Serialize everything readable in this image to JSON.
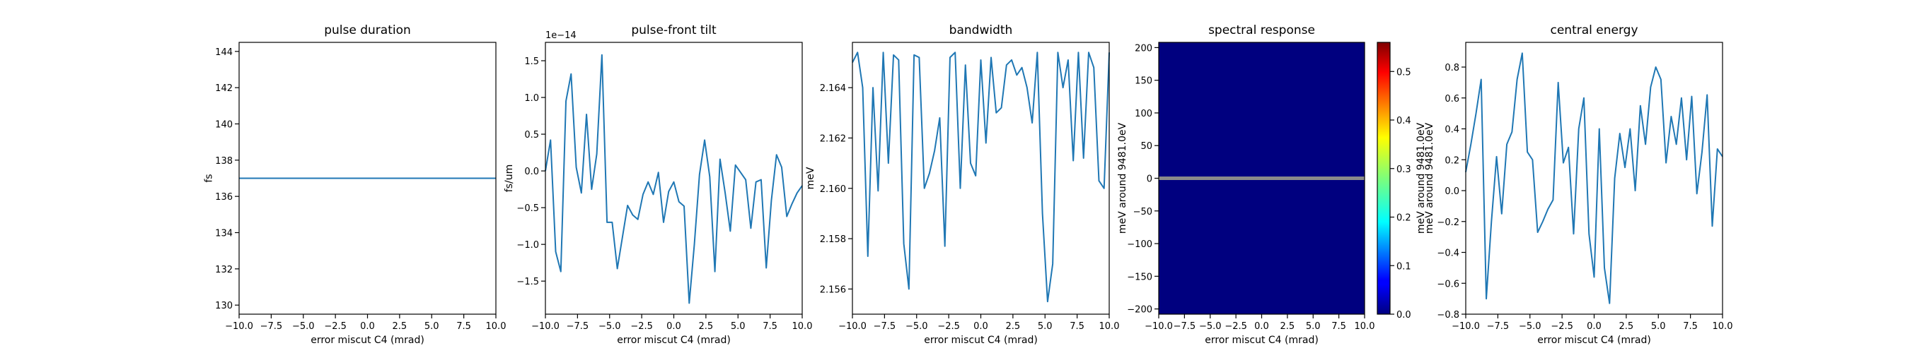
{
  "figure": {
    "background": "#ffffff"
  },
  "chart_data": [
    {
      "type": "line",
      "title": "pulse duration",
      "xlabel": "error miscut C4 (mrad)",
      "ylabel": "fs",
      "xlim": [
        -10,
        10
      ],
      "ylim": [
        129.5,
        144.5
      ],
      "xticks": [
        -10,
        -7.5,
        -5,
        -2.5,
        0,
        2.5,
        5,
        7.5,
        10
      ],
      "xtick_labels": [
        "−10.0",
        "−7.5",
        "−5.0",
        "−2.5",
        "0.0",
        "2.5",
        "5.0",
        "7.5",
        "10.0"
      ],
      "yticks": [
        130,
        132,
        134,
        136,
        138,
        140,
        142,
        144
      ],
      "ytick_labels": [
        "130",
        "132",
        "134",
        "136",
        "138",
        "140",
        "142",
        "144"
      ],
      "color": "#1f77b4",
      "series": [
        {
          "x": [
            -10,
            10
          ],
          "y": [
            137.0,
            137.0
          ]
        }
      ]
    },
    {
      "type": "line",
      "title": "pulse-front tilt",
      "xlabel": "error miscut C4 (mrad)",
      "ylabel": "fs/um",
      "offset_text": "1e−14",
      "xlim": [
        -10,
        10
      ],
      "ylim": [
        -1.95,
        1.75
      ],
      "xticks": [
        -10,
        -7.5,
        -5,
        -2.5,
        0,
        2.5,
        5,
        7.5,
        10
      ],
      "xtick_labels": [
        "−10.0",
        "−7.5",
        "−5.0",
        "−2.5",
        "0.0",
        "2.5",
        "5.0",
        "7.5",
        "10.0"
      ],
      "yticks": [
        -1.5,
        -1.0,
        -0.5,
        0.0,
        0.5,
        1.0,
        1.5
      ],
      "ytick_labels": [
        "−1.5",
        "−1.0",
        "−0.5",
        "0.0",
        "0.5",
        "1.0",
        "1.5"
      ],
      "color": "#1f77b4",
      "series": [
        {
          "x": [
            -10,
            -9.6,
            -9.2,
            -8.8,
            -8.4,
            -8.0,
            -7.6,
            -7.2,
            -6.8,
            -6.4,
            -6.0,
            -5.6,
            -5.2,
            -4.8,
            -4.4,
            -4.0,
            -3.6,
            -3.2,
            -2.8,
            -2.4,
            -2.0,
            -1.6,
            -1.2,
            -0.8,
            -0.4,
            0.0,
            0.4,
            0.8,
            1.2,
            1.6,
            2.0,
            2.4,
            2.8,
            3.2,
            3.6,
            4.0,
            4.4,
            4.8,
            5.2,
            5.6,
            6.0,
            6.4,
            6.8,
            7.2,
            7.6,
            8.0,
            8.4,
            8.8,
            9.2,
            9.6,
            10.0
          ],
          "y": [
            0.0,
            0.42,
            -1.1,
            -1.37,
            0.95,
            1.32,
            0.05,
            -0.3,
            0.77,
            -0.25,
            0.23,
            1.58,
            -0.7,
            -0.7,
            -1.33,
            -0.9,
            -0.47,
            -0.6,
            -0.66,
            -0.32,
            -0.15,
            -0.32,
            -0.02,
            -0.7,
            -0.28,
            -0.15,
            -0.42,
            -0.48,
            -1.8,
            -1.0,
            -0.05,
            0.42,
            -0.08,
            -1.37,
            0.16,
            -0.3,
            -0.82,
            0.08,
            -0.02,
            -0.12,
            -0.78,
            -0.15,
            -0.12,
            -1.32,
            -0.4,
            0.22,
            0.05,
            -0.62,
            -0.45,
            -0.3,
            -0.2
          ]
        }
      ]
    },
    {
      "type": "line",
      "title": "bandwidth",
      "xlabel": "error miscut C4 (mrad)",
      "ylabel": "meV",
      "xlim": [
        -10,
        10
      ],
      "ylim": [
        2.155,
        2.1658
      ],
      "xticks": [
        -10,
        -7.5,
        -5,
        -2.5,
        0,
        2.5,
        5,
        7.5,
        10
      ],
      "xtick_labels": [
        "−10.0",
        "−7.5",
        "−5.0",
        "−2.5",
        "0.0",
        "2.5",
        "5.0",
        "7.5",
        "10.0"
      ],
      "yticks": [
        2.156,
        2.158,
        2.16,
        2.162,
        2.164
      ],
      "ytick_labels": [
        "2.156",
        "2.158",
        "2.160",
        "2.162",
        "2.164"
      ],
      "color": "#1f77b4",
      "series": [
        {
          "x": [
            -10,
            -9.6,
            -9.2,
            -8.8,
            -8.4,
            -8.0,
            -7.6,
            -7.2,
            -6.8,
            -6.4,
            -6.0,
            -5.6,
            -5.2,
            -4.8,
            -4.4,
            -4.0,
            -3.6,
            -3.2,
            -2.8,
            -2.4,
            -2.0,
            -1.6,
            -1.2,
            -0.8,
            -0.4,
            0.0,
            0.4,
            0.8,
            1.2,
            1.6,
            2.0,
            2.4,
            2.8,
            3.2,
            3.6,
            4.0,
            4.4,
            4.8,
            5.2,
            5.6,
            6.0,
            6.4,
            6.8,
            7.2,
            7.6,
            8.0,
            8.4,
            8.8,
            9.2,
            9.6,
            10.0
          ],
          "y": [
            2.165,
            2.1654,
            2.164,
            2.1573,
            2.164,
            2.1599,
            2.1654,
            2.161,
            2.1653,
            2.1651,
            2.1578,
            2.156,
            2.1653,
            2.1652,
            2.16,
            2.1606,
            2.1615,
            2.1628,
            2.1577,
            2.1652,
            2.1654,
            2.16,
            2.1649,
            2.161,
            2.1605,
            2.1651,
            2.1618,
            2.1652,
            2.163,
            2.1632,
            2.1649,
            2.1651,
            2.1645,
            2.1648,
            2.164,
            2.1626,
            2.1654,
            2.159,
            2.1555,
            2.157,
            2.1654,
            2.164,
            2.1651,
            2.1611,
            2.1654,
            2.1612,
            2.1654,
            2.1648,
            2.1603,
            2.16,
            2.1654
          ]
        }
      ]
    },
    {
      "type": "heatmap",
      "title": "spectral response",
      "xlabel": "error miscut C4 (mrad)",
      "ylabel": "meV around 9481.0eV",
      "xlim": [
        -10,
        10
      ],
      "ylim": [
        -208,
        208
      ],
      "xticks": [
        -10,
        -7.5,
        -5,
        -2.5,
        0,
        2.5,
        5,
        7.5,
        10
      ],
      "xtick_labels": [
        "−10.0",
        "−7.5",
        "−5.0",
        "−2.5",
        "0.0",
        "2.5",
        "5.0",
        "7.5",
        "10.0"
      ],
      "yticks": [
        -200,
        -150,
        -100,
        -50,
        0,
        50,
        100,
        150,
        200
      ],
      "ytick_labels": [
        "−200",
        "−150",
        "−100",
        "−50",
        "0",
        "50",
        "100",
        "150",
        "200"
      ],
      "colormap": "jet",
      "field_color": "#00007f",
      "band_center": 0,
      "band_color": "#8a8a8a",
      "colorbar": {
        "label": "meV around 9481.0eV",
        "range": [
          0.0,
          0.56
        ],
        "ticks": [
          0.0,
          0.1,
          0.2,
          0.3,
          0.4,
          0.5
        ],
        "tick_labels": [
          "0.0",
          "0.1",
          "0.2",
          "0.3",
          "0.4",
          "0.5"
        ]
      }
    },
    {
      "type": "line",
      "title": "central energy",
      "xlabel": "error miscut C4 (mrad)",
      "ylabel": "meV around 9481.0eV",
      "xlim": [
        -10,
        10
      ],
      "ylim": [
        -0.8,
        0.96
      ],
      "xticks": [
        -10,
        -7.5,
        -5,
        -2.5,
        0,
        2.5,
        5,
        7.5,
        10
      ],
      "xtick_labels": [
        "−10.0",
        "−7.5",
        "−5.0",
        "−2.5",
        "0.0",
        "2.5",
        "5.0",
        "7.5",
        "10.0"
      ],
      "yticks": [
        -0.8,
        -0.6,
        -0.4,
        -0.2,
        0.0,
        0.2,
        0.4,
        0.6,
        0.8
      ],
      "ytick_labels": [
        "−0.8",
        "−0.6",
        "−0.4",
        "−0.2",
        "0.0",
        "0.2",
        "0.4",
        "0.6",
        "0.8"
      ],
      "color": "#1f77b4",
      "series": [
        {
          "x": [
            -10,
            -9.6,
            -9.2,
            -8.8,
            -8.4,
            -8.0,
            -7.6,
            -7.2,
            -6.8,
            -6.4,
            -6.0,
            -5.6,
            -5.2,
            -4.8,
            -4.4,
            -4.0,
            -3.6,
            -3.2,
            -2.8,
            -2.4,
            -2.0,
            -1.6,
            -1.2,
            -0.8,
            -0.4,
            0.0,
            0.4,
            0.8,
            1.2,
            1.6,
            2.0,
            2.4,
            2.8,
            3.2,
            3.6,
            4.0,
            4.4,
            4.8,
            5.2,
            5.6,
            6.0,
            6.4,
            6.8,
            7.2,
            7.6,
            8.0,
            8.4,
            8.8,
            9.2,
            9.6,
            10.0
          ],
          "y": [
            0.12,
            0.3,
            0.5,
            0.72,
            -0.7,
            -0.2,
            0.22,
            -0.15,
            0.3,
            0.38,
            0.72,
            0.89,
            0.25,
            0.2,
            -0.27,
            -0.2,
            -0.12,
            -0.06,
            0.7,
            0.18,
            0.28,
            -0.28,
            0.4,
            0.6,
            -0.28,
            -0.56,
            0.4,
            -0.5,
            -0.73,
            0.08,
            0.37,
            0.15,
            0.4,
            0.0,
            0.55,
            0.3,
            0.67,
            0.8,
            0.72,
            0.18,
            0.48,
            0.3,
            0.6,
            0.2,
            0.61,
            -0.02,
            0.25,
            0.62,
            -0.23,
            0.27,
            0.22
          ]
        }
      ]
    }
  ]
}
